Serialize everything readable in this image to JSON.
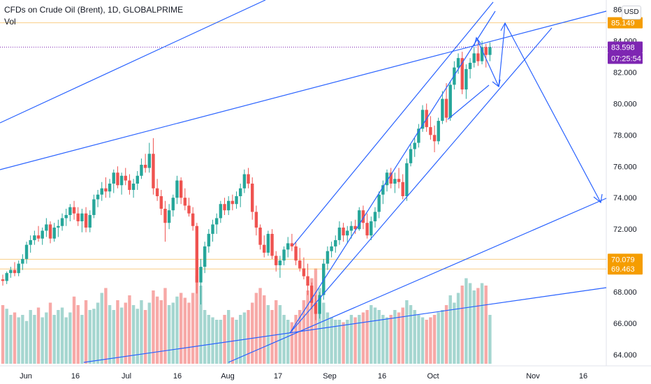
{
  "legend": {
    "title": "CFDs on Crude Oil (Brent), 1D, GLOBALPRIME",
    "volume_label": "Vol"
  },
  "currency_button": "USD",
  "colors": {
    "up": "#26a69a",
    "down": "#ef5350",
    "vol_up": "#a5d6d0",
    "vol_down": "#f7a9a7",
    "drawing": "#2962ff",
    "hline": "#f5a623",
    "last_price_bg": "#7e26b2",
    "hline_label_bg": "#f59d00",
    "text": "#131722",
    "axis_text": "#131722"
  },
  "chart_data": {
    "type": "candlestick",
    "symbol": "CFDs on Crude Oil (Brent)",
    "interval": "1D",
    "y_axis": {
      "ylim": [
        62.8,
        86.6
      ],
      "ticks": [
        64,
        66,
        68,
        70,
        72,
        74,
        76,
        78,
        80,
        82,
        84,
        86
      ],
      "tick_labels": [
        "64.000",
        "66.000",
        "68.000",
        "70.000",
        "72.000",
        "74.000",
        "76.000",
        "78.000",
        "80.000",
        "82.000",
        "84.000",
        "86"
      ]
    },
    "x_axis": {
      "tick_labels": [
        "Jun",
        "16",
        "Jul",
        "16",
        "Aug",
        "17",
        "Sep",
        "16",
        "Oct",
        "Nov",
        "16"
      ]
    },
    "price_labels": [
      {
        "text": "85.149",
        "value": 85.149,
        "style": "orange"
      },
      {
        "text": "83.598",
        "value": 83.598,
        "style": "purple"
      },
      {
        "text": "07:25:54",
        "style": "purple-sub"
      },
      {
        "text": "70.079",
        "value": 70.079,
        "style": "orange"
      },
      {
        "text": "69.463",
        "value": 69.463,
        "style": "orange"
      }
    ],
    "horizontal_lines": [
      85.149,
      70.079,
      69.463
    ],
    "last_price": 83.598,
    "candles": [
      [
        68.8,
        69.1,
        68.4,
        68.7
      ],
      [
        68.7,
        69.3,
        68.5,
        69.2
      ],
      [
        69.2,
        69.6,
        68.9,
        69.4
      ],
      [
        69.4,
        69.9,
        69.0,
        69.2
      ],
      [
        69.2,
        70.0,
        69.0,
        69.8
      ],
      [
        69.8,
        70.4,
        69.4,
        70.1
      ],
      [
        70.1,
        71.2,
        69.8,
        71.0
      ],
      [
        71.0,
        71.6,
        70.5,
        71.3
      ],
      [
        71.3,
        71.9,
        71.0,
        71.6
      ],
      [
        71.6,
        72.2,
        71.2,
        71.4
      ],
      [
        71.4,
        72.1,
        71.0,
        71.9
      ],
      [
        71.9,
        72.7,
        71.5,
        72.3
      ],
      [
        72.3,
        72.5,
        71.1,
        71.4
      ],
      [
        71.4,
        72.4,
        71.2,
        72.1
      ],
      [
        72.1,
        72.6,
        71.5,
        72.2
      ],
      [
        72.2,
        73.0,
        71.9,
        72.7
      ],
      [
        72.7,
        73.3,
        72.2,
        72.9
      ],
      [
        72.9,
        73.6,
        72.5,
        73.4
      ],
      [
        73.4,
        73.8,
        72.6,
        73.0
      ],
      [
        73.0,
        73.4,
        72.2,
        72.5
      ],
      [
        72.5,
        73.3,
        71.8,
        73.0
      ],
      [
        73.0,
        73.4,
        71.8,
        72.1
      ],
      [
        72.1,
        73.2,
        71.8,
        72.9
      ],
      [
        72.9,
        74.2,
        72.7,
        73.9
      ],
      [
        73.9,
        74.5,
        73.4,
        74.2
      ],
      [
        74.2,
        75.0,
        73.8,
        74.6
      ],
      [
        74.6,
        75.3,
        74.0,
        74.4
      ],
      [
        74.4,
        75.2,
        74.0,
        74.9
      ],
      [
        74.9,
        75.8,
        74.3,
        75.6
      ],
      [
        75.6,
        76.0,
        74.6,
        74.8
      ],
      [
        74.8,
        75.6,
        74.2,
        75.4
      ],
      [
        75.4,
        75.9,
        74.8,
        75.1
      ],
      [
        75.1,
        75.5,
        74.2,
        74.5
      ],
      [
        74.5,
        75.2,
        74.0,
        74.9
      ],
      [
        74.9,
        75.7,
        74.5,
        75.4
      ],
      [
        75.4,
        76.5,
        75.2,
        76.1
      ],
      [
        76.1,
        76.8,
        75.6,
        75.9
      ],
      [
        75.9,
        77.5,
        75.6,
        76.8
      ],
      [
        76.8,
        77.8,
        74.2,
        74.6
      ],
      [
        74.6,
        75.2,
        73.8,
        74.1
      ],
      [
        74.1,
        74.5,
        72.9,
        73.3
      ],
      [
        73.3,
        73.8,
        71.2,
        72.4
      ],
      [
        72.4,
        73.6,
        72.0,
        73.2
      ],
      [
        73.2,
        74.2,
        72.8,
        74.0
      ],
      [
        74.0,
        75.4,
        73.6,
        75.1
      ],
      [
        75.1,
        75.3,
        73.6,
        74.0
      ],
      [
        74.0,
        74.6,
        73.2,
        73.5
      ],
      [
        73.5,
        74.0,
        72.8,
        73.0
      ],
      [
        73.0,
        73.4,
        71.9,
        72.2
      ],
      [
        72.2,
        72.4,
        67.9,
        68.6
      ],
      [
        68.6,
        70.1,
        67.2,
        69.6
      ],
      [
        69.6,
        71.2,
        69.2,
        70.9
      ],
      [
        70.9,
        72.0,
        70.5,
        71.7
      ],
      [
        71.7,
        72.6,
        71.2,
        72.3
      ],
      [
        72.3,
        73.0,
        71.7,
        72.7
      ],
      [
        72.7,
        73.8,
        72.4,
        73.6
      ],
      [
        73.6,
        74.0,
        72.9,
        73.2
      ],
      [
        73.2,
        74.1,
        72.9,
        73.8
      ],
      [
        73.8,
        74.2,
        73.2,
        73.6
      ],
      [
        73.6,
        74.4,
        73.3,
        74.1
      ],
      [
        74.1,
        74.9,
        73.4,
        74.6
      ],
      [
        74.6,
        75.8,
        74.3,
        75.5
      ],
      [
        75.5,
        75.9,
        74.6,
        74.9
      ],
      [
        74.9,
        75.3,
        72.6,
        73.1
      ],
      [
        73.1,
        73.5,
        71.6,
        72.1
      ],
      [
        72.1,
        72.3,
        70.7,
        71.0
      ],
      [
        71.0,
        71.6,
        70.2,
        70.5
      ],
      [
        70.5,
        71.9,
        70.3,
        71.7
      ],
      [
        71.7,
        72.0,
        70.1,
        70.3
      ],
      [
        70.3,
        70.6,
        69.3,
        69.7
      ],
      [
        69.7,
        70.3,
        68.9,
        70.0
      ],
      [
        70.0,
        70.9,
        69.7,
        70.7
      ],
      [
        70.7,
        71.5,
        70.2,
        71.1
      ],
      [
        71.1,
        71.7,
        70.6,
        70.9
      ],
      [
        70.9,
        71.2,
        69.7,
        70.0
      ],
      [
        70.0,
        70.8,
        69.3,
        69.5
      ],
      [
        69.5,
        70.2,
        68.8,
        69.0
      ],
      [
        69.0,
        69.8,
        67.8,
        68.4
      ],
      [
        68.4,
        68.6,
        66.9,
        67.3
      ],
      [
        67.3,
        67.8,
        66.2,
        66.6
      ],
      [
        66.6,
        68.0,
        66.3,
        67.8
      ],
      [
        67.8,
        70.1,
        67.5,
        69.8
      ],
      [
        69.8,
        70.9,
        69.4,
        70.6
      ],
      [
        70.6,
        71.2,
        70.2,
        70.9
      ],
      [
        70.9,
        71.6,
        70.5,
        71.3
      ],
      [
        71.3,
        72.5,
        71.0,
        72.1
      ],
      [
        72.1,
        72.4,
        71.2,
        71.6
      ],
      [
        71.6,
        72.2,
        71.1,
        71.9
      ],
      [
        71.9,
        72.5,
        71.4,
        72.2
      ],
      [
        72.2,
        72.6,
        71.7,
        72.0
      ],
      [
        72.0,
        73.4,
        71.9,
        73.2
      ],
      [
        73.2,
        73.5,
        72.0,
        72.4
      ],
      [
        72.4,
        73.0,
        71.4,
        71.6
      ],
      [
        71.6,
        72.8,
        71.3,
        72.5
      ],
      [
        72.5,
        73.4,
        72.1,
        73.1
      ],
      [
        73.1,
        74.4,
        72.7,
        74.2
      ],
      [
        74.2,
        75.1,
        73.6,
        74.8
      ],
      [
        74.8,
        75.8,
        74.4,
        75.6
      ],
      [
        75.6,
        75.9,
        74.6,
        74.9
      ],
      [
        74.9,
        75.6,
        74.3,
        75.2
      ],
      [
        75.2,
        75.9,
        74.6,
        75.0
      ],
      [
        75.0,
        75.5,
        73.9,
        74.1
      ],
      [
        74.1,
        76.5,
        73.8,
        76.2
      ],
      [
        76.2,
        77.4,
        76.0,
        77.1
      ],
      [
        77.1,
        77.8,
        76.6,
        77.5
      ],
      [
        77.5,
        78.7,
        77.2,
        78.4
      ],
      [
        78.4,
        79.9,
        78.2,
        79.6
      ],
      [
        79.6,
        80.0,
        78.2,
        78.5
      ],
      [
        78.5,
        79.2,
        77.7,
        78.0
      ],
      [
        78.0,
        78.6,
        76.9,
        77.6
      ],
      [
        77.6,
        79.1,
        77.4,
        78.9
      ],
      [
        78.9,
        80.8,
        78.7,
        80.3
      ],
      [
        80.3,
        81.3,
        78.8,
        79.1
      ],
      [
        79.1,
        81.4,
        78.9,
        81.2
      ],
      [
        81.2,
        82.7,
        80.9,
        82.3
      ],
      [
        82.3,
        83.2,
        81.9,
        82.9
      ],
      [
        82.9,
        83.3,
        80.6,
        80.9
      ],
      [
        80.9,
        82.5,
        80.3,
        82.2
      ],
      [
        82.2,
        82.9,
        81.6,
        82.6
      ],
      [
        82.6,
        83.6,
        82.3,
        83.2
      ],
      [
        83.2,
        83.9,
        82.4,
        82.7
      ],
      [
        82.7,
        84.0,
        82.5,
        83.6
      ],
      [
        83.6,
        83.8,
        82.3,
        83.1
      ],
      [
        83.1,
        83.9,
        82.7,
        83.6
      ]
    ],
    "volume": [
      48,
      45,
      40,
      42,
      38,
      40,
      35,
      44,
      40,
      46,
      38,
      42,
      50,
      40,
      44,
      46,
      38,
      42,
      55,
      48,
      40,
      52,
      44,
      45,
      50,
      58,
      62,
      48,
      44,
      52,
      46,
      50,
      56,
      48,
      45,
      52,
      44,
      50,
      60,
      55,
      52,
      62,
      48,
      50,
      55,
      58,
      54,
      50,
      58,
      72,
      64,
      44,
      40,
      38,
      36,
      36,
      40,
      44,
      38,
      36,
      40,
      42,
      44,
      50,
      58,
      62,
      56,
      48,
      44,
      52,
      48,
      40,
      36,
      34,
      40,
      44,
      52,
      60,
      70,
      78,
      62,
      50,
      42,
      38,
      36,
      36,
      34,
      36,
      40,
      38,
      40,
      42,
      44,
      48,
      46,
      44,
      40,
      38,
      40,
      44,
      42,
      46,
      52,
      48,
      44,
      40,
      38,
      36,
      38,
      40,
      42,
      44,
      48,
      56,
      50,
      58,
      64,
      70,
      66,
      60,
      62,
      66,
      64,
      40
    ],
    "vol_scale_max": 80
  }
}
